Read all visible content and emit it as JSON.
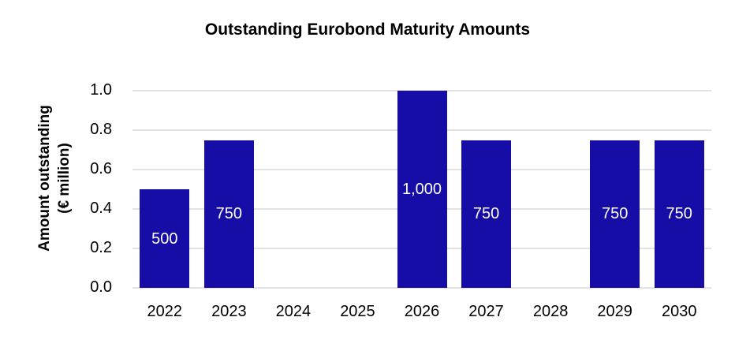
{
  "chart_data": {
    "type": "bar",
    "title": "Outstanding Eurobond Maturity Amounts",
    "ylabel": "Amount outstanding (€ million)",
    "ylabel_lines": [
      "Amount outstanding",
      "(€ million)"
    ],
    "xlabel": "",
    "categories": [
      "2022",
      "2023",
      "2024",
      "2025",
      "2026",
      "2027",
      "2028",
      "2029",
      "2030"
    ],
    "values": [
      500,
      750,
      null,
      null,
      1000,
      750,
      null,
      750,
      750
    ],
    "bar_labels": [
      "500",
      "750",
      null,
      null,
      "1,000",
      "750",
      null,
      "750",
      "750"
    ],
    "axis_heights": [
      0.5,
      0.75,
      0,
      0,
      1.0,
      0.75,
      0,
      0.75,
      0.75
    ],
    "ylim": [
      0,
      1.0
    ],
    "yticks": [
      "0.0",
      "0.2",
      "0.4",
      "0.6",
      "0.8",
      "1.0"
    ],
    "grid": true,
    "legend": "none",
    "bar_color": "#160ca6",
    "gridline_color": "#e3e3e3",
    "label_color": "#ffffff",
    "text_color": "#000000"
  }
}
